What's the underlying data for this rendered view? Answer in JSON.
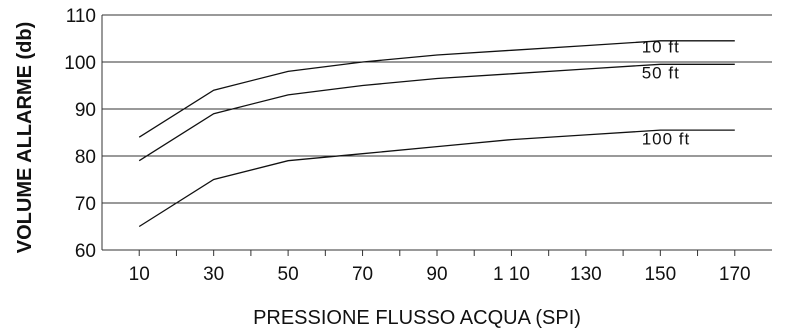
{
  "chart_data": {
    "type": "line",
    "title": "",
    "xlabel": "PRESSIONE FLUSSO ACQUA (SPI)",
    "ylabel": "VOLUME ALLARME (db)",
    "x_tick_labels": [
      "10",
      "30",
      "50",
      "70",
      "90",
      "1 10",
      "130",
      "150",
      "170"
    ],
    "x_tick_values": [
      10,
      30,
      50,
      70,
      90,
      110,
      130,
      150,
      170
    ],
    "xlim": [
      0,
      180
    ],
    "y_tick_labels": [
      "60",
      "70",
      "80",
      "90",
      "100",
      "110"
    ],
    "y_tick_values": [
      60,
      70,
      80,
      90,
      100,
      110
    ],
    "ylim": [
      60,
      110
    ],
    "grid": "horizontal",
    "series": [
      {
        "name": "10 ft",
        "label_near": [
          145,
          102
        ],
        "x": [
          10,
          30,
          50,
          70,
          90,
          110,
          130,
          150,
          170
        ],
        "values": [
          84,
          94,
          98,
          100,
          101.5,
          102.5,
          103.5,
          104.5,
          104.5
        ]
      },
      {
        "name": "50 ft",
        "label_near": [
          145,
          96.5
        ],
        "x": [
          10,
          30,
          50,
          70,
          90,
          110,
          130,
          150,
          170
        ],
        "values": [
          79,
          89,
          93,
          95,
          96.5,
          97.5,
          98.5,
          99.5,
          99.5
        ]
      },
      {
        "name": "100 ft",
        "label_near": [
          145,
          82.5
        ],
        "x": [
          10,
          30,
          50,
          70,
          90,
          110,
          130,
          150,
          170
        ],
        "values": [
          65,
          75,
          79,
          80.5,
          82,
          83.5,
          84.5,
          85.5,
          85.5
        ]
      }
    ],
    "colors": {
      "line": "#111111",
      "grid": "#333333",
      "text": "#111111"
    }
  }
}
